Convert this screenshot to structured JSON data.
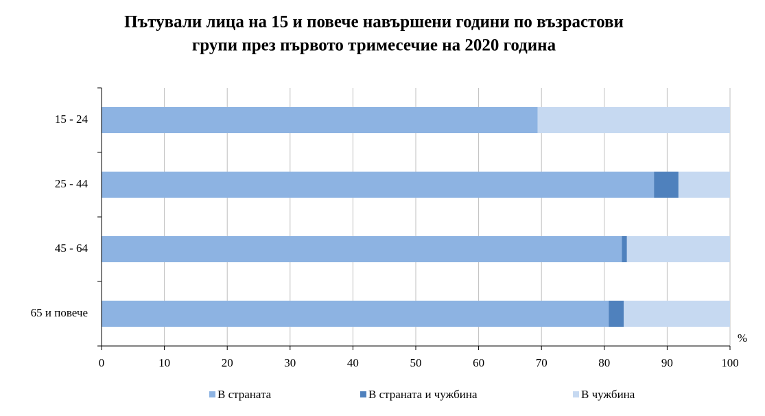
{
  "chart_data": {
    "type": "stacked-bar-horizontal",
    "title": [
      "Пътували лица на 15 и повече навършени години по възрастови",
      "групи през първото тримесечие на 2020 година"
    ],
    "categories": [
      "15 - 24",
      "25 - 44",
      "45 - 64",
      "65  и повече"
    ],
    "series": [
      {
        "name": "В страната",
        "color": "#8db3e2",
        "values": [
          69.4,
          87.9,
          82.8,
          80.7
        ]
      },
      {
        "name": "В страната  и чужбина",
        "color": "#4f81bd",
        "values": [
          0,
          3.9,
          0.8,
          2.4
        ]
      },
      {
        "name": "В чужбина",
        "color": "#c6d9f1",
        "values": [
          30.6,
          8.2,
          16.4,
          16.9
        ]
      }
    ],
    "x_unit": "%",
    "xlim": [
      0,
      100
    ],
    "xticks": [
      0,
      10,
      20,
      30,
      40,
      50,
      60,
      70,
      80,
      90,
      100
    ],
    "grid": true,
    "legend": "bottom"
  }
}
